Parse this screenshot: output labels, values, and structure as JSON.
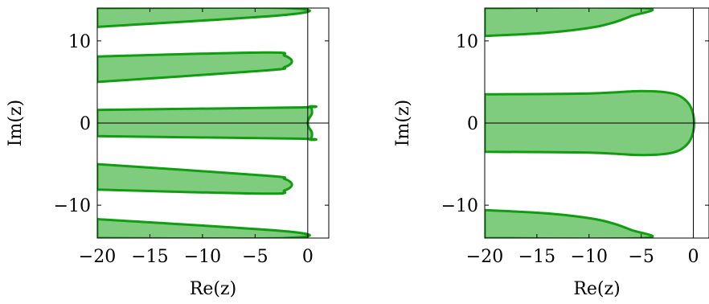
{
  "chart_data": [
    {
      "type": "area",
      "xlabel": "Re(z)",
      "ylabel": "Im(z)",
      "xlim": [
        -20,
        2
      ],
      "ylim": [
        -14,
        14
      ],
      "xticks": [
        -20,
        -15,
        -10,
        -5,
        0
      ],
      "xtick_labels": [
        "−20",
        "−15",
        "−10",
        "−5",
        "0"
      ],
      "yticks": [
        -10,
        0,
        10
      ],
      "ytick_labels": [
        "−10",
        "0",
        "10"
      ],
      "fill_color": "#7fcc7f",
      "edge_color": "#109e10",
      "regions": [
        {
          "name": "",
          "boundary": [
            [
              -20,
              14
            ],
            [
              -2.2,
              14
            ],
            [
              -1.9,
              13.2
            ],
            [
              -20,
              11.7
            ]
          ]
        },
        {
          "name": "",
          "boundary": [
            [
              -20,
              8.1
            ],
            [
              -4,
              8.6
            ],
            [
              -2.2,
              8.2
            ],
            [
              -1.5,
              7.5
            ],
            [
              -2.2,
              6.8
            ],
            [
              -4,
              6.4
            ],
            [
              -20,
              5.0
            ]
          ]
        },
        {
          "name": "",
          "boundary": [
            [
              -20,
              1.6
            ],
            [
              -1,
              1.9
            ],
            [
              0.2,
              2.0
            ],
            [
              0.4,
              1.2
            ],
            [
              0.1,
              0.5
            ],
            [
              0.0,
              0
            ],
            [
              0.1,
              -0.5
            ],
            [
              0.4,
              -1.2
            ],
            [
              0.2,
              -2.0
            ],
            [
              -1,
              -1.9
            ],
            [
              -20,
              -1.6
            ]
          ]
        },
        {
          "name": "",
          "boundary": [
            [
              -20,
              -5.0
            ],
            [
              -4,
              -6.4
            ],
            [
              -2.2,
              -6.8
            ],
            [
              -1.5,
              -7.5
            ],
            [
              -2.2,
              -8.2
            ],
            [
              -4,
              -8.6
            ],
            [
              -20,
              -8.1
            ]
          ]
        },
        {
          "name": "",
          "boundary": [
            [
              -20,
              -11.7
            ],
            [
              -1.9,
              -13.2
            ],
            [
              -2.2,
              -14
            ],
            [
              -20,
              -14
            ]
          ]
        }
      ]
    },
    {
      "type": "area",
      "xlabel": "Re(z)",
      "ylabel": "Im(z)",
      "xlim": [
        -20,
        1.5
      ],
      "ylim": [
        -14,
        14
      ],
      "xticks": [
        -20,
        -15,
        -10,
        -5,
        0
      ],
      "xtick_labels": [
        "−20",
        "−15",
        "−10",
        "−5",
        "0"
      ],
      "yticks": [
        -10,
        0,
        10
      ],
      "ytick_labels": [
        "−10",
        "0",
        "10"
      ],
      "fill_color": "#7fcc7f",
      "edge_color": "#109e10",
      "regions": [
        {
          "name": "",
          "boundary": [
            [
              -20,
              14
            ],
            [
              -4.8,
              14
            ],
            [
              -6,
              13.0
            ],
            [
              -9,
              11.8
            ],
            [
              -14,
              11.0
            ],
            [
              -20,
              10.6
            ]
          ]
        },
        {
          "name": "",
          "boundary": [
            [
              -20,
              3.5
            ],
            [
              -10,
              3.6
            ],
            [
              -5,
              3.9
            ],
            [
              -2,
              3.6
            ],
            [
              -0.6,
              2.6
            ],
            [
              0.0,
              1.0
            ],
            [
              0.0,
              -1.0
            ],
            [
              -0.6,
              -2.6
            ],
            [
              -2,
              -3.6
            ],
            [
              -5,
              -3.9
            ],
            [
              -10,
              -3.6
            ],
            [
              -20,
              -3.5
            ]
          ]
        },
        {
          "name": "",
          "boundary": [
            [
              -20,
              -10.6
            ],
            [
              -14,
              -11.0
            ],
            [
              -9,
              -11.8
            ],
            [
              -6,
              -13.0
            ],
            [
              -4.8,
              -14
            ],
            [
              -20,
              -14
            ]
          ]
        }
      ]
    }
  ]
}
